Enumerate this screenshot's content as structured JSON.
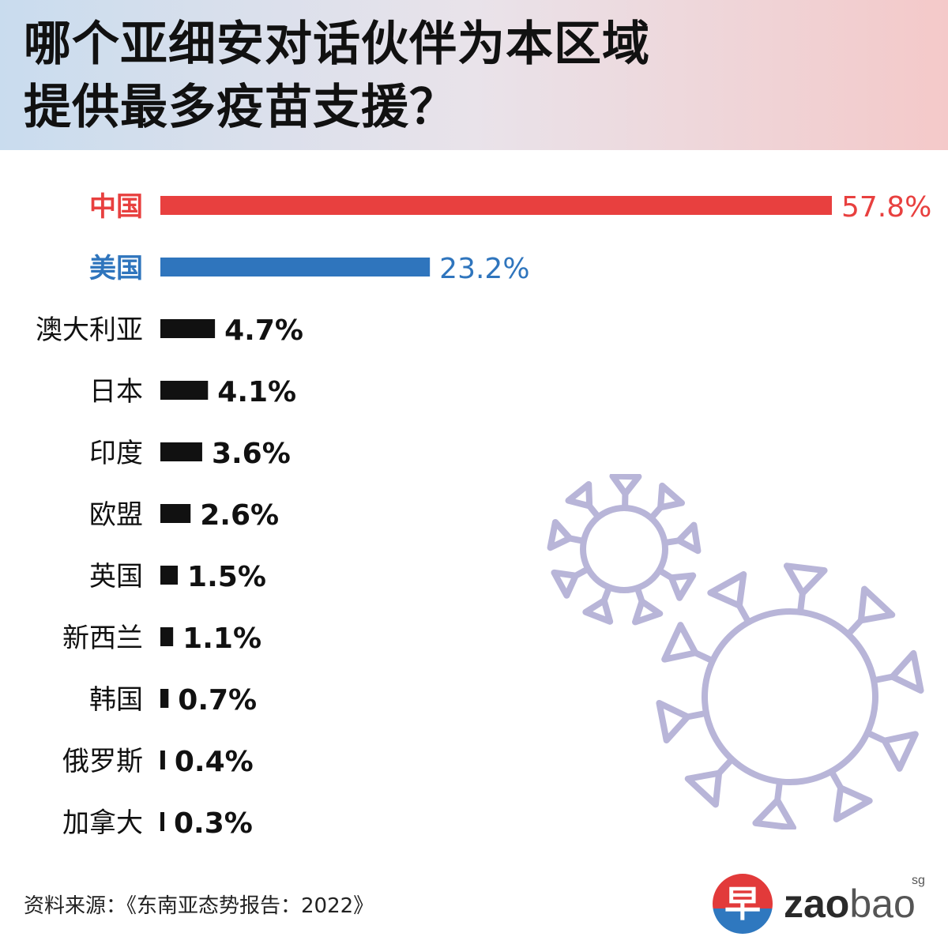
{
  "header": {
    "title_line1": "哪个亚细安对话伙伴为本区域",
    "title_line2": "提供最多疫苗支援？"
  },
  "colors": {
    "china": "#e8403f",
    "usa": "#2f75bd",
    "others": "#111111",
    "virus": "#b8b5d8"
  },
  "chart_data": {
    "type": "bar",
    "orientation": "horizontal",
    "title": "哪个亚细安对话伙伴为本区域提供最多疫苗支援？",
    "categories": [
      "中国",
      "美国",
      "澳大利亚",
      "日本",
      "印度",
      "欧盟",
      "英国",
      "新西兰",
      "韩国",
      "俄罗斯",
      "加拿大"
    ],
    "values": [
      57.8,
      23.2,
      4.7,
      4.1,
      3.6,
      2.6,
      1.5,
      1.1,
      0.7,
      0.4,
      0.3
    ],
    "labels": [
      "57.8%",
      "23.2%",
      "4.7%",
      "4.1%",
      "3.6%",
      "2.6%",
      "1.5%",
      "1.1%",
      "0.7%",
      "0.4%",
      "0.3%"
    ],
    "unit": "%",
    "xlim": [
      0,
      57.8
    ],
    "grid": false,
    "legend": "none"
  },
  "source": {
    "text": "资料来源：《东南亚态势报告：2022》"
  },
  "logo": {
    "glyph": "早",
    "word_bold": "zao",
    "word_light": "bao",
    "superscript": "sg"
  }
}
